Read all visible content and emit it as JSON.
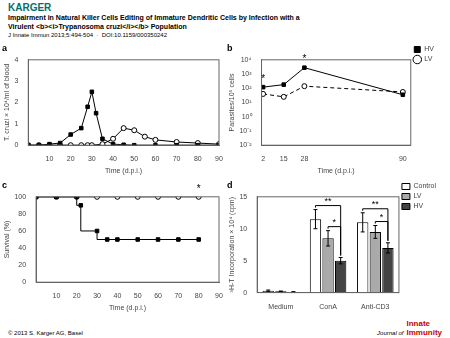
{
  "title": "Impairment in Natural Killer Cells Editing of Immature Dendritic Cells by Infection with a\nVirulent <b><i>Trypanosoma cruzi</i></b> Population",
  "subtitle": "J Innate Immun 2013;5:494-504  ·  DOI:10.1159/000350242",
  "annotations": [
    {
      "text": "KARGER",
      "color": "#007070"
    },
    {
      "text": "Journal of"
    },
    {
      "text": "Innate\nImmunity",
      "color": "#cc0000"
    },
    {
      "text": "© 2013 S. Karger AG, Basel"
    }
  ],
  "chart_data": [
    {
      "type": "line",
      "title": "a",
      "xlabel": "Time (d.p.i.)",
      "ylabel": "T. cruzi × 10⁴/ml of blood",
      "xlim": [
        0,
        90
      ],
      "xticks": [
        10,
        20,
        30,
        40,
        50,
        60,
        70,
        80,
        90
      ],
      "ylim": [
        0,
        4
      ],
      "yticks": [
        0,
        1,
        2,
        3,
        4
      ],
      "grid": false,
      "series": [
        {
          "color": "black",
          "marker": "filled-square",
          "line_style": "solid",
          "x": [
            0,
            5,
            10,
            15,
            20,
            25,
            28,
            30,
            32,
            35,
            40,
            45,
            50,
            60,
            70,
            80,
            90
          ],
          "values": [
            0,
            0,
            0.05,
            0.1,
            0.5,
            0.8,
            1.8,
            2.5,
            1.5,
            0.3,
            0.05,
            0.02,
            0,
            0,
            0,
            0,
            0
          ]
        },
        {
          "color": "black",
          "marker": "open-circle",
          "line_style": "solid",
          "x": [
            0,
            5,
            10,
            15,
            20,
            25,
            28,
            30,
            35,
            40,
            45,
            50,
            55,
            60,
            70,
            80,
            90
          ],
          "values": [
            0,
            0,
            0,
            0,
            0,
            0,
            0,
            0,
            0.05,
            0.3,
            0.8,
            0.7,
            0.4,
            0.25,
            0.15,
            0.1,
            0.05
          ]
        }
      ]
    },
    {
      "type": "line",
      "title": "b",
      "log": "y",
      "xlabel": "Time (d.p.i.)",
      "ylabel": "Parasites/10⁵ cells",
      "xlim": [
        1,
        95
      ],
      "xticks": [
        2,
        15,
        28,
        90
      ],
      "ylim": [
        0.01,
        10000
      ],
      "yticks": [
        {
          "value": 0.01,
          "label": "10⁻²"
        },
        {
          "value": 0.1,
          "label": "10⁻¹"
        },
        {
          "value": 1,
          "label": "10⁰"
        },
        {
          "value": 10,
          "label": "10¹"
        },
        {
          "value": 100,
          "label": "10²"
        },
        {
          "value": 1000,
          "label": "10³"
        },
        {
          "value": 10000,
          "label": "10⁴"
        }
      ],
      "grid": false,
      "legend": "upper right",
      "series": [
        {
          "name": "HV",
          "color": "black",
          "marker": "filled-square",
          "line_style": "solid",
          "x": [
            2,
            15,
            28,
            90
          ],
          "values": [
            120,
            180,
            2800,
            35
          ]
        },
        {
          "name": "LV",
          "color": "black",
          "marker": "open-circle",
          "line_style": "dashed",
          "x": [
            2,
            15,
            28,
            90
          ],
          "values": [
            40,
            25,
            140,
            55
          ]
        }
      ],
      "annotations": [
        {
          "text": "*",
          "x": 28,
          "y": 2800
        },
        {
          "text": "*",
          "x": 2,
          "y": 120
        }
      ]
    },
    {
      "type": "step",
      "title": "c",
      "xlabel": "Time (d.p.i.)",
      "ylabel": "Survival (%)",
      "xlim": [
        0,
        90
      ],
      "xticks": [
        10,
        20,
        30,
        40,
        50,
        60,
        70,
        80,
        90
      ],
      "ylim": [
        0,
        100
      ],
      "yticks": [
        0,
        20,
        40,
        60,
        80,
        100
      ],
      "grid": false,
      "series": [
        {
          "color": "black",
          "marker": "filled-square",
          "line_style": "solid",
          "x": [
            0,
            10,
            20,
            22,
            30,
            35,
            40,
            50,
            60,
            70,
            80
          ],
          "values": [
            100,
            100,
            100,
            90,
            60,
            50,
            50,
            50,
            50,
            50,
            50
          ]
        },
        {
          "color": "black",
          "marker": "open-circle",
          "line_style": "solid",
          "x": [
            0,
            10,
            20,
            30,
            40,
            50,
            60,
            70,
            80
          ],
          "values": [
            100,
            100,
            100,
            100,
            100,
            100,
            100,
            100,
            100
          ]
        }
      ],
      "annotations": [
        {
          "text": "*",
          "x": 80,
          "y": 100
        }
      ]
    },
    {
      "type": "bar",
      "title": "d",
      "categories": [
        "Medium",
        "ConA",
        "Anti-CD3"
      ],
      "ylabel": "³H-T Incorporation × 10⁴ (cpm)",
      "ylim": [
        0,
        15
      ],
      "yticks": [
        0,
        5,
        10,
        15
      ],
      "grid": false,
      "legend": "upper right",
      "series": [
        {
          "name": "Control",
          "color": "white",
          "values": [
            0.3,
            11.5,
            11.0
          ],
          "errors": [
            0.1,
            1.5,
            1.5
          ]
        },
        {
          "name": "LV",
          "color": "#aaaaaa",
          "values": [
            0.2,
            8.5,
            9.5
          ],
          "errors": [
            0.05,
            1.2,
            1.0
          ]
        },
        {
          "name": "HV",
          "color": "#444444",
          "values": [
            0.1,
            5.0,
            7.0
          ],
          "errors": [
            0.05,
            0.5,
            0.8
          ]
        }
      ],
      "annotations": [
        {
          "text": "**",
          "category": "ConA",
          "from": "Control",
          "to": "HV"
        },
        {
          "text": "*",
          "category": "ConA",
          "from": "LV",
          "to": "HV"
        },
        {
          "text": "**",
          "category": "Anti-CD3",
          "from": "Control",
          "to": "HV"
        },
        {
          "text": "*",
          "category": "Anti-CD3",
          "from": "LV",
          "to": "HV"
        }
      ]
    }
  ]
}
